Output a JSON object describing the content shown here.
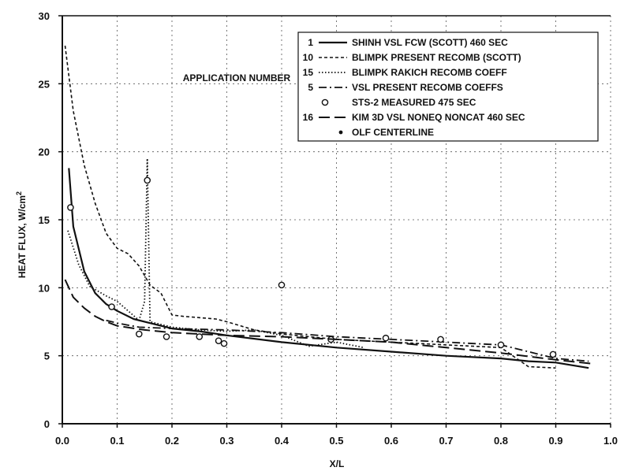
{
  "chart_data": {
    "type": "line",
    "title": "",
    "xlabel": "X/L",
    "ylabel": "HEAT FLUX, W/cm",
    "ylabel_superscript": "2",
    "xlim": [
      0.0,
      1.0
    ],
    "ylim": [
      0,
      30
    ],
    "x_ticks": [
      "0.0",
      "0.1",
      "0.2",
      "0.3",
      "0.4",
      "0.5",
      "0.6",
      "0.7",
      "0.8",
      "0.9",
      "1.0"
    ],
    "y_ticks": [
      "0",
      "5",
      "10",
      "15",
      "20",
      "25",
      "30"
    ],
    "grid": true,
    "legend_position": "top-right",
    "legend_header": "APPLICATION NUMBER",
    "series": [
      {
        "number": "1",
        "name": "SHINH VSL FCW (SCOTT) 460 SEC",
        "style": "solid",
        "points": [
          [
            0.012,
            18.8
          ],
          [
            0.02,
            14.5
          ],
          [
            0.04,
            11.2
          ],
          [
            0.06,
            9.6
          ],
          [
            0.08,
            8.8
          ],
          [
            0.1,
            8.3
          ],
          [
            0.13,
            7.7
          ],
          [
            0.16,
            7.4
          ],
          [
            0.2,
            7.0
          ],
          [
            0.25,
            6.8
          ],
          [
            0.3,
            6.5
          ],
          [
            0.4,
            6.0
          ],
          [
            0.5,
            5.6
          ],
          [
            0.6,
            5.3
          ],
          [
            0.7,
            5.0
          ],
          [
            0.8,
            4.8
          ],
          [
            0.85,
            4.6
          ],
          [
            0.9,
            4.5
          ],
          [
            0.96,
            4.1
          ]
        ]
      },
      {
        "number": "10",
        "name": "BLIMPK PRESENT RECOMB (SCOTT)",
        "style": "dashed",
        "points": [
          [
            0.005,
            27.8
          ],
          [
            0.02,
            23.0
          ],
          [
            0.04,
            19.0
          ],
          [
            0.06,
            16.2
          ],
          [
            0.08,
            14.0
          ],
          [
            0.1,
            12.9
          ],
          [
            0.12,
            12.5
          ],
          [
            0.14,
            11.6
          ],
          [
            0.16,
            10.2
          ],
          [
            0.18,
            9.6
          ],
          [
            0.2,
            8.0
          ],
          [
            0.22,
            7.9
          ],
          [
            0.25,
            7.8
          ],
          [
            0.28,
            7.7
          ],
          [
            0.3,
            7.5
          ],
          [
            0.35,
            6.9
          ],
          [
            0.4,
            6.6
          ],
          [
            0.45,
            6.4
          ],
          [
            0.5,
            6.2
          ],
          [
            0.55,
            6.1
          ],
          [
            0.6,
            6.0
          ],
          [
            0.65,
            5.9
          ],
          [
            0.7,
            5.8
          ],
          [
            0.75,
            5.7
          ],
          [
            0.8,
            5.6
          ],
          [
            0.85,
            4.2
          ],
          [
            0.9,
            4.1
          ]
        ]
      },
      {
        "number": "15",
        "name": "BLIMPK RAKICH RECOMB COEFF",
        "style": "dotted",
        "points": [
          [
            0.01,
            14.2
          ],
          [
            0.03,
            11.7
          ],
          [
            0.05,
            10.1
          ],
          [
            0.08,
            9.4
          ],
          [
            0.1,
            9.0
          ],
          [
            0.12,
            8.3
          ],
          [
            0.14,
            7.6
          ],
          [
            0.15,
            9.0
          ],
          [
            0.155,
            19.5
          ],
          [
            0.16,
            7.5
          ],
          [
            0.2,
            7.1
          ],
          [
            0.25,
            6.9
          ],
          [
            0.3,
            6.8
          ],
          [
            0.35,
            6.9
          ],
          [
            0.4,
            6.5
          ],
          [
            0.45,
            5.7
          ],
          [
            0.5,
            6.0
          ],
          [
            0.55,
            5.6
          ]
        ]
      },
      {
        "number": "5",
        "name": "VSL PRESENT RECOMB COEFFS",
        "style": "dashdot",
        "points": [
          [
            0.08,
            7.6
          ],
          [
            0.1,
            7.4
          ],
          [
            0.14,
            7.1
          ],
          [
            0.2,
            7.0
          ],
          [
            0.3,
            6.9
          ],
          [
            0.4,
            6.7
          ],
          [
            0.5,
            6.4
          ],
          [
            0.6,
            6.2
          ],
          [
            0.7,
            6.0
          ],
          [
            0.8,
            5.8
          ],
          [
            0.9,
            4.8
          ],
          [
            0.96,
            4.6
          ]
        ]
      },
      {
        "number": "",
        "name": "STS-2 MEASURED 475 SEC",
        "style": "circle",
        "points": [
          [
            0.015,
            15.9
          ],
          [
            0.09,
            8.6
          ],
          [
            0.14,
            6.6
          ],
          [
            0.155,
            17.9
          ],
          [
            0.19,
            6.4
          ],
          [
            0.25,
            6.4
          ],
          [
            0.285,
            6.1
          ],
          [
            0.295,
            5.9
          ],
          [
            0.4,
            10.2
          ],
          [
            0.49,
            6.2
          ],
          [
            0.59,
            6.3
          ],
          [
            0.69,
            6.2
          ],
          [
            0.8,
            5.8
          ],
          [
            0.895,
            5.1
          ]
        ]
      },
      {
        "number": "16",
        "name": "KIM 3D VSL NONEQ NONCAT 460 SEC",
        "style": "longdash",
        "points": [
          [
            0.005,
            10.6
          ],
          [
            0.02,
            9.3
          ],
          [
            0.04,
            8.5
          ],
          [
            0.06,
            7.9
          ],
          [
            0.08,
            7.5
          ],
          [
            0.1,
            7.2
          ],
          [
            0.15,
            6.9
          ],
          [
            0.2,
            6.7
          ],
          [
            0.3,
            6.5
          ],
          [
            0.4,
            6.4
          ],
          [
            0.5,
            6.2
          ],
          [
            0.6,
            6.0
          ],
          [
            0.7,
            5.6
          ],
          [
            0.8,
            5.2
          ],
          [
            0.9,
            4.7
          ],
          [
            0.97,
            4.4
          ]
        ]
      },
      {
        "number": "",
        "name": "OLF CENTERLINE",
        "style": "dot",
        "points": []
      }
    ]
  }
}
